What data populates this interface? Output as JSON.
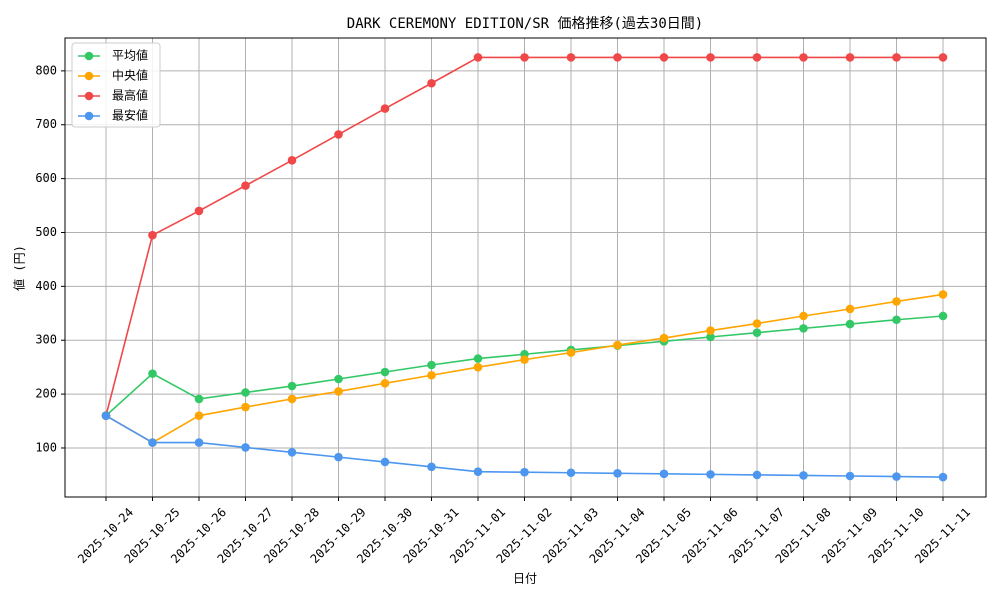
{
  "chart_data": {
    "type": "line",
    "title": "DARK CEREMONY EDITION/SR 価格推移(過去30日間)",
    "x_label": "日付",
    "y_label": "値 (円)",
    "categories": [
      "2025-10-24",
      "2025-10-25",
      "2025-10-26",
      "2025-10-27",
      "2025-10-28",
      "2025-10-29",
      "2025-10-30",
      "2025-10-31",
      "2025-11-01",
      "2025-11-02",
      "2025-11-03",
      "2025-11-04",
      "2025-11-05",
      "2025-11-06",
      "2025-11-07",
      "2025-11-08",
      "2025-11-09",
      "2025-11-10",
      "2025-11-11"
    ],
    "series": [
      {
        "name": "平均値",
        "color": "#33c866",
        "values": [
          160,
          238,
          191,
          203,
          215,
          228,
          241,
          254,
          266,
          274,
          282,
          290,
          298,
          306,
          314,
          322,
          330,
          338,
          345
        ]
      },
      {
        "name": "中央値",
        "color": "#ffa500",
        "values": [
          160,
          110,
          160,
          176,
          191,
          205,
          220,
          235,
          250,
          264,
          277,
          291,
          304,
          318,
          331,
          345,
          358,
          372,
          385
        ]
      },
      {
        "name": "最高値",
        "color": "#f04848",
        "values": [
          160,
          495,
          540,
          587,
          634,
          682,
          730,
          777,
          825,
          825,
          825,
          825,
          825,
          825,
          825,
          825,
          825,
          825,
          825
        ]
      },
      {
        "name": "最安値",
        "color": "#4c96f0",
        "values": [
          160,
          110,
          110,
          101,
          92,
          83,
          74,
          65,
          56,
          55,
          54,
          53,
          52,
          51,
          50,
          49,
          48,
          47,
          46
        ]
      }
    ],
    "ylim": [
      9,
      861
    ],
    "yticks": [
      100,
      200,
      300,
      400,
      500,
      600,
      700,
      800
    ],
    "grid": true,
    "legend": "upper-left"
  }
}
